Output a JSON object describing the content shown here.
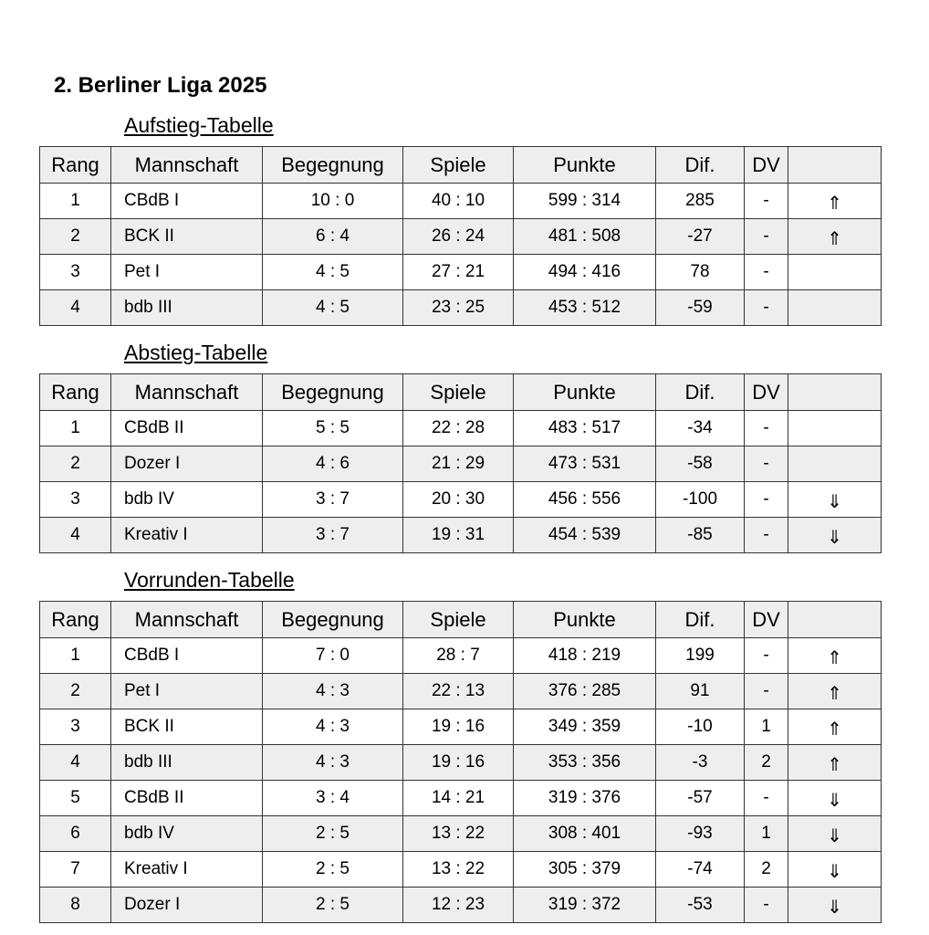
{
  "title": "2. Berliner Liga 2025",
  "columns": [
    "Rang",
    "Mannschaft",
    "Begegnung",
    "Spiele",
    "Punkte",
    "Dif.",
    "DV",
    ""
  ],
  "tables": [
    {
      "title": "Aufstieg-Tabelle",
      "rows": [
        [
          "1",
          "CBdB I",
          "10 : 0",
          "40 : 10",
          "599 : 314",
          "285",
          "-",
          "⇑"
        ],
        [
          "2",
          "BCK II",
          "6 : 4",
          "26 : 24",
          "481 : 508",
          "-27",
          "-",
          "⇑"
        ],
        [
          "3",
          "Pet I",
          "4 : 5",
          "27 : 21",
          "494 : 416",
          "78",
          "-",
          ""
        ],
        [
          "4",
          "bdb III",
          "4 : 5",
          "23 : 25",
          "453 : 512",
          "-59",
          "-",
          ""
        ]
      ]
    },
    {
      "title": "Abstieg-Tabelle",
      "rows": [
        [
          "1",
          "CBdB II",
          "5 : 5",
          "22 : 28",
          "483 : 517",
          "-34",
          "-",
          ""
        ],
        [
          "2",
          "Dozer I",
          "4 : 6",
          "21 : 29",
          "473 : 531",
          "-58",
          "-",
          ""
        ],
        [
          "3",
          "bdb IV",
          "3 : 7",
          "20 : 30",
          "456 : 556",
          "-100",
          "-",
          "⇓"
        ],
        [
          "4",
          "Kreativ I",
          "3 : 7",
          "19 : 31",
          "454 : 539",
          "-85",
          "-",
          "⇓"
        ]
      ]
    },
    {
      "title": "Vorrunden-Tabelle",
      "rows": [
        [
          "1",
          "CBdB I",
          "7 : 0",
          "28 : 7",
          "418 : 219",
          "199",
          "-",
          "⇑"
        ],
        [
          "2",
          "Pet I",
          "4 : 3",
          "22 : 13",
          "376 : 285",
          "91",
          "-",
          "⇑"
        ],
        [
          "3",
          "BCK II",
          "4 : 3",
          "19 : 16",
          "349 : 359",
          "-10",
          "1",
          "⇑"
        ],
        [
          "4",
          "bdb III",
          "4 : 3",
          "19 : 16",
          "353 : 356",
          "-3",
          "2",
          "⇑"
        ],
        [
          "5",
          "CBdB II",
          "3 : 4",
          "14 : 21",
          "319 : 376",
          "-57",
          "-",
          "⇓"
        ],
        [
          "6",
          "bdb IV",
          "2 : 5",
          "13 : 22",
          "308 : 401",
          "-93",
          "1",
          "⇓"
        ],
        [
          "7",
          "Kreativ I",
          "2 : 5",
          "13 : 22",
          "305 : 379",
          "-74",
          "2",
          "⇓"
        ],
        [
          "8",
          "Dozer I",
          "2 : 5",
          "12 : 23",
          "319 : 372",
          "-53",
          "-",
          "⇓"
        ]
      ]
    }
  ]
}
